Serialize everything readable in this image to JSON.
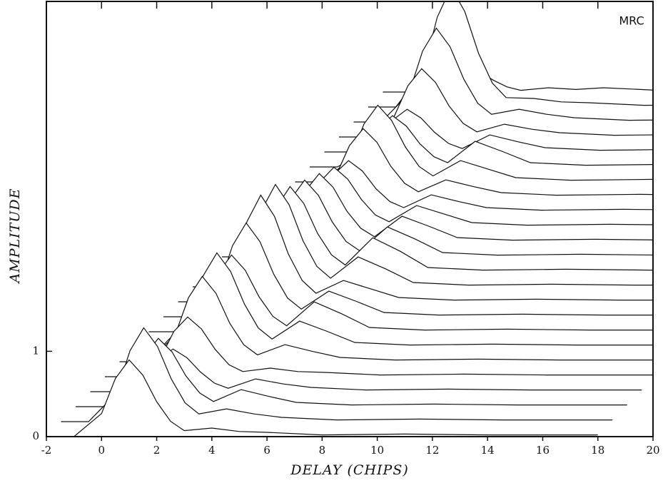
{
  "chart_data": {
    "type": "waterfall",
    "label": "MRC",
    "xlabel": "DELAY (CHIPS)",
    "ylabel": "AMPLITUDE",
    "xlim": [
      -2,
      20
    ],
    "ylim": [
      0,
      5.1
    ],
    "xticks": [
      -2,
      0,
      2,
      4,
      6,
      8,
      10,
      12,
      14,
      16,
      18,
      20
    ],
    "yticks": [
      0,
      1
    ],
    "color": "#111111",
    "x": [
      -2,
      -1,
      0,
      0.5,
      1,
      1.5,
      2,
      2.5,
      3,
      4,
      5,
      6,
      8,
      11,
      14,
      18
    ],
    "series": [
      {
        "values": [
          0,
          0,
          0.27,
          0.68,
          0.9,
          0.72,
          0.41,
          0.18,
          0.07,
          0.1,
          0.06,
          0.05,
          0.02,
          0.03,
          0.02,
          0.02
        ]
      },
      {
        "values": [
          0,
          0,
          0.33,
          0.83,
          1.1,
          0.88,
          0.5,
          0.22,
          0.09,
          0.15,
          0.09,
          0.05,
          0.02,
          0.03,
          0.02,
          0.02
        ]
      },
      {
        "values": [
          0,
          0,
          0.24,
          0.6,
          0.8,
          0.64,
          0.36,
          0.16,
          0.06,
          0.2,
          0.12,
          0.05,
          0.02,
          0.03,
          0.02,
          0.02
        ]
      },
      {
        "values": [
          0,
          0,
          0.15,
          0.38,
          0.5,
          0.4,
          0.23,
          0.1,
          0.04,
          0.15,
          0.09,
          0.05,
          0.02,
          0.03,
          0.02,
          0.02
        ]
      },
      {
        "values": [
          0,
          0,
          0.21,
          0.53,
          0.7,
          0.56,
          0.32,
          0.14,
          0.06,
          0.1,
          0.06,
          0.05,
          0.02,
          0.03,
          0.02,
          0.02
        ]
      },
      {
        "values": [
          0,
          0,
          0.3,
          0.75,
          1.0,
          0.8,
          0.45,
          0.2,
          0.08,
          0.2,
          0.12,
          0.05,
          0.02,
          0.03,
          0.02,
          0.02
        ]
      },
      {
        "values": [
          0,
          0,
          0.33,
          0.83,
          1.1,
          0.88,
          0.5,
          0.22,
          0.09,
          0.3,
          0.18,
          0.05,
          0.02,
          0.03,
          0.02,
          0.02
        ]
      },
      {
        "values": [
          0,
          0,
          0.27,
          0.68,
          0.9,
          0.72,
          0.41,
          0.18,
          0.07,
          0.35,
          0.21,
          0.05,
          0.02,
          0.03,
          0.02,
          0.02
        ]
      },
      {
        "values": [
          0,
          0,
          0.33,
          0.83,
          1.1,
          0.88,
          0.5,
          0.22,
          0.09,
          0.3,
          0.18,
          0.05,
          0.02,
          0.03,
          0.02,
          0.02
        ]
      },
      {
        "values": [
          0,
          0,
          0.38,
          0.94,
          1.25,
          1.0,
          0.56,
          0.25,
          0.1,
          0.25,
          0.15,
          0.05,
          0.02,
          0.03,
          0.02,
          0.02
        ]
      },
      {
        "values": [
          0,
          0,
          0.36,
          0.9,
          1.2,
          0.96,
          0.54,
          0.24,
          0.1,
          0.35,
          0.21,
          0.05,
          0.02,
          0.03,
          0.02,
          0.02
        ]
      },
      {
        "values": [
          0,
          0,
          0.3,
          0.75,
          1.0,
          0.8,
          0.45,
          0.2,
          0.08,
          0.4,
          0.24,
          0.05,
          0.02,
          0.03,
          0.02,
          0.02
        ]
      },
      {
        "values": [
          0,
          0,
          0.27,
          0.68,
          0.9,
          0.72,
          0.41,
          0.18,
          0.07,
          0.35,
          0.21,
          0.05,
          0.02,
          0.03,
          0.02,
          0.02
        ]
      },
      {
        "values": [
          0,
          0,
          0.24,
          0.6,
          0.8,
          0.64,
          0.36,
          0.16,
          0.06,
          0.3,
          0.18,
          0.05,
          0.02,
          0.03,
          0.02,
          0.02
        ]
      },
      {
        "values": [
          0,
          0,
          0.21,
          0.53,
          0.7,
          0.56,
          0.32,
          0.14,
          0.06,
          0.25,
          0.15,
          0.05,
          0.02,
          0.03,
          0.02,
          0.02
        ]
      },
      {
        "values": [
          0,
          0,
          0.18,
          0.45,
          0.6,
          0.48,
          0.27,
          0.12,
          0.05,
          0.2,
          0.12,
          0.05,
          0.02,
          0.03,
          0.02,
          0.02
        ]
      },
      {
        "values": [
          0,
          0,
          0.24,
          0.6,
          0.8,
          0.64,
          0.36,
          0.16,
          0.06,
          0.2,
          0.12,
          0.05,
          0.02,
          0.03,
          0.02,
          0.02
        ]
      },
      {
        "values": [
          0,
          0,
          0.27,
          0.68,
          0.9,
          0.72,
          0.41,
          0.18,
          0.07,
          0.25,
          0.15,
          0.05,
          0.02,
          0.03,
          0.02,
          0.02
        ]
      },
      {
        "values": [
          0,
          0,
          0.18,
          0.45,
          0.6,
          0.48,
          0.27,
          0.12,
          0.05,
          0.3,
          0.18,
          0.05,
          0.02,
          0.03,
          0.02,
          0.02
        ]
      },
      {
        "values": [
          0,
          0,
          0.15,
          0.38,
          0.5,
          0.4,
          0.23,
          0.1,
          0.04,
          0.2,
          0.12,
          0.05,
          0.02,
          0.03,
          0.02,
          0.02
        ]
      },
      {
        "values": [
          0,
          0,
          0.24,
          0.6,
          0.8,
          0.64,
          0.36,
          0.16,
          0.06,
          0.15,
          0.09,
          0.05,
          0.02,
          0.03,
          0.02,
          0.02
        ]
      },
      {
        "values": [
          0,
          0,
          0.33,
          0.83,
          1.1,
          0.88,
          0.5,
          0.22,
          0.09,
          0.15,
          0.09,
          0.05,
          0.02,
          0.03,
          0.02,
          0.02
        ]
      },
      {
        "values": [
          0,
          0,
          0.42,
          1.05,
          1.4,
          1.12,
          0.63,
          0.28,
          0.11,
          0.1,
          0.06,
          0.05,
          0.02,
          0.03,
          0.02,
          0.02
        ]
      },
      {
        "values": [
          0,
          0,
          0.09,
          0.23,
          0.3,
          0.24,
          0.14,
          0.06,
          0.02,
          0.05,
          0.03,
          0.05,
          0.02,
          0.03,
          0.02,
          0.02
        ]
      }
    ]
  }
}
